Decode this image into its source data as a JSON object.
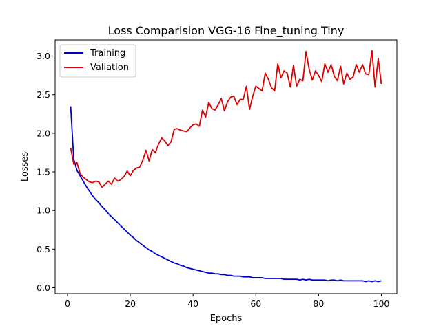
{
  "chart_data": {
    "type": "line",
    "title": "Loss Comparision VGG-16 Fine_tuning Tiny",
    "xlabel": "Epochs",
    "ylabel": "Losses",
    "xlim": [
      -3.95,
      104.95
    ],
    "ylim": [
      -0.076,
      3.21
    ],
    "xticks": [
      0,
      20,
      40,
      60,
      80,
      100
    ],
    "yticks": [
      0.0,
      0.5,
      1.0,
      1.5,
      2.0,
      2.5,
      3.0
    ],
    "xtick_labels": [
      "0",
      "20",
      "40",
      "60",
      "80",
      "100"
    ],
    "ytick_labels": [
      "0.0",
      "0.5",
      "1.0",
      "1.5",
      "2.0",
      "2.5",
      "3.0"
    ],
    "grid": false,
    "legend_position": "top-left",
    "x": [
      1,
      2,
      3,
      4,
      5,
      6,
      7,
      8,
      9,
      10,
      11,
      12,
      13,
      14,
      15,
      16,
      17,
      18,
      19,
      20,
      21,
      22,
      23,
      24,
      25,
      26,
      27,
      28,
      29,
      30,
      31,
      32,
      33,
      34,
      35,
      36,
      37,
      38,
      39,
      40,
      41,
      42,
      43,
      44,
      45,
      46,
      47,
      48,
      49,
      50,
      51,
      52,
      53,
      54,
      55,
      56,
      57,
      58,
      59,
      60,
      61,
      62,
      63,
      64,
      65,
      66,
      67,
      68,
      69,
      70,
      71,
      72,
      73,
      74,
      75,
      76,
      77,
      78,
      79,
      80,
      81,
      82,
      83,
      84,
      85,
      86,
      87,
      88,
      89,
      90,
      91,
      92,
      93,
      94,
      95,
      96,
      97,
      98,
      99,
      100
    ],
    "series": [
      {
        "name": "Training",
        "color": "#0000cc",
        "values": [
          2.35,
          1.66,
          1.52,
          1.45,
          1.38,
          1.31,
          1.25,
          1.19,
          1.14,
          1.1,
          1.05,
          1.01,
          0.96,
          0.92,
          0.88,
          0.84,
          0.8,
          0.76,
          0.72,
          0.68,
          0.65,
          0.61,
          0.58,
          0.55,
          0.52,
          0.49,
          0.47,
          0.44,
          0.42,
          0.4,
          0.38,
          0.36,
          0.34,
          0.32,
          0.31,
          0.29,
          0.28,
          0.26,
          0.25,
          0.24,
          0.23,
          0.22,
          0.21,
          0.2,
          0.19,
          0.19,
          0.18,
          0.18,
          0.17,
          0.17,
          0.16,
          0.16,
          0.15,
          0.15,
          0.15,
          0.14,
          0.14,
          0.14,
          0.13,
          0.13,
          0.13,
          0.13,
          0.12,
          0.12,
          0.12,
          0.12,
          0.12,
          0.12,
          0.11,
          0.11,
          0.11,
          0.11,
          0.11,
          0.1,
          0.11,
          0.1,
          0.11,
          0.1,
          0.1,
          0.1,
          0.1,
          0.1,
          0.09,
          0.1,
          0.1,
          0.09,
          0.1,
          0.09,
          0.09,
          0.09,
          0.09,
          0.09,
          0.09,
          0.09,
          0.08,
          0.09,
          0.08,
          0.09,
          0.08,
          0.09
        ]
      },
      {
        "name": "Valiation",
        "color": "#dd0000",
        "values": [
          1.81,
          1.6,
          1.62,
          1.48,
          1.43,
          1.4,
          1.37,
          1.36,
          1.38,
          1.37,
          1.3,
          1.34,
          1.38,
          1.34,
          1.42,
          1.38,
          1.4,
          1.44,
          1.51,
          1.45,
          1.52,
          1.55,
          1.56,
          1.65,
          1.78,
          1.64,
          1.79,
          1.75,
          1.86,
          1.94,
          1.9,
          1.84,
          1.89,
          2.05,
          2.06,
          2.04,
          2.03,
          2.02,
          2.07,
          2.11,
          2.12,
          2.09,
          2.3,
          2.21,
          2.4,
          2.32,
          2.3,
          2.37,
          2.45,
          2.29,
          2.41,
          2.47,
          2.48,
          2.37,
          2.44,
          2.44,
          2.61,
          2.31,
          2.48,
          2.61,
          2.58,
          2.55,
          2.78,
          2.7,
          2.59,
          2.55,
          2.9,
          2.72,
          2.81,
          2.78,
          2.6,
          2.88,
          2.61,
          2.7,
          2.68,
          3.06,
          2.83,
          2.69,
          2.81,
          2.75,
          2.67,
          2.9,
          2.79,
          2.89,
          2.74,
          2.68,
          2.87,
          2.64,
          2.78,
          2.7,
          2.73,
          2.89,
          2.79,
          2.89,
          2.77,
          2.76,
          3.07,
          2.6,
          2.97,
          2.64
        ]
      }
    ]
  }
}
